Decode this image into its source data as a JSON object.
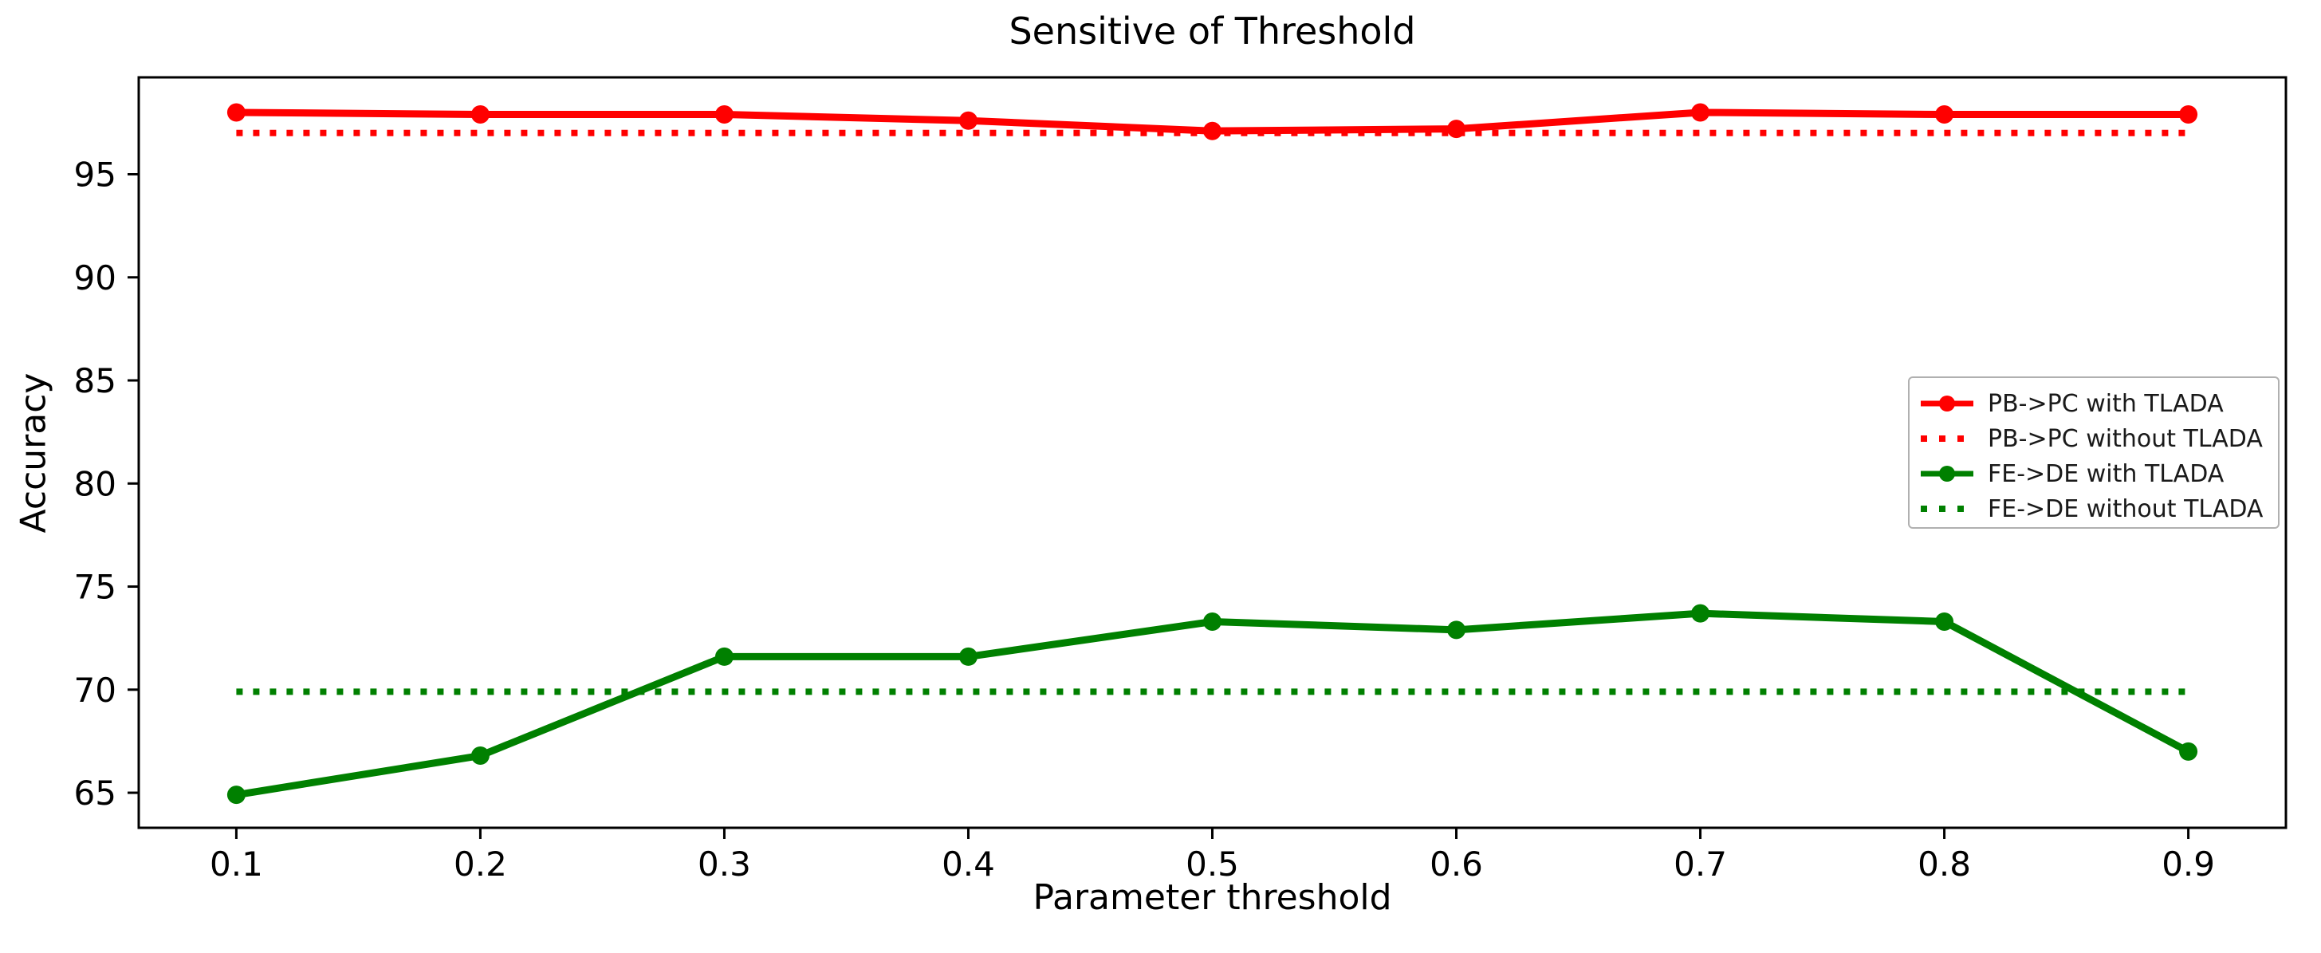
{
  "chart_data": {
    "type": "line",
    "title": "Sensitive of Threshold",
    "xlabel": "Parameter threshold",
    "ylabel": "Accuracy",
    "x": [
      0.1,
      0.2,
      0.3,
      0.4,
      0.5,
      0.6,
      0.7,
      0.8,
      0.9
    ],
    "xlim": [
      0.06,
      0.94
    ],
    "ylim": [
      63.3,
      99.7
    ],
    "xtick_labels": [
      "0.1",
      "0.2",
      "0.3",
      "0.4",
      "0.5",
      "0.6",
      "0.7",
      "0.8",
      "0.9"
    ],
    "ytick_labels": [
      "65",
      "70",
      "75",
      "80",
      "85",
      "90",
      "95"
    ],
    "ytick_values": [
      65,
      70,
      75,
      80,
      85,
      90,
      95
    ],
    "grid": false,
    "legend_position": "center right",
    "axis_color": "#000000",
    "series": [
      {
        "name": "PB->PC with TLADA",
        "color": "#ff0000",
        "style": "solid",
        "marker": "circle",
        "values": [
          98.0,
          97.9,
          97.9,
          97.6,
          97.1,
          97.2,
          98.0,
          97.9,
          97.9
        ]
      },
      {
        "name": "PB->PC without TLADA",
        "color": "#ff0000",
        "style": "dotted",
        "marker": "none",
        "values": [
          97.0,
          97.0,
          97.0,
          97.0,
          97.0,
          97.0,
          97.0,
          97.0,
          97.0
        ]
      },
      {
        "name": "FE->DE with TLADA",
        "color": "#008000",
        "style": "solid",
        "marker": "circle",
        "values": [
          64.9,
          66.8,
          71.6,
          71.6,
          73.3,
          72.9,
          73.7,
          73.3,
          67.0
        ]
      },
      {
        "name": "FE->DE without TLADA",
        "color": "#008000",
        "style": "dotted",
        "marker": "none",
        "values": [
          69.9,
          69.9,
          69.9,
          69.9,
          69.9,
          69.9,
          69.9,
          69.9,
          69.9
        ]
      }
    ]
  }
}
